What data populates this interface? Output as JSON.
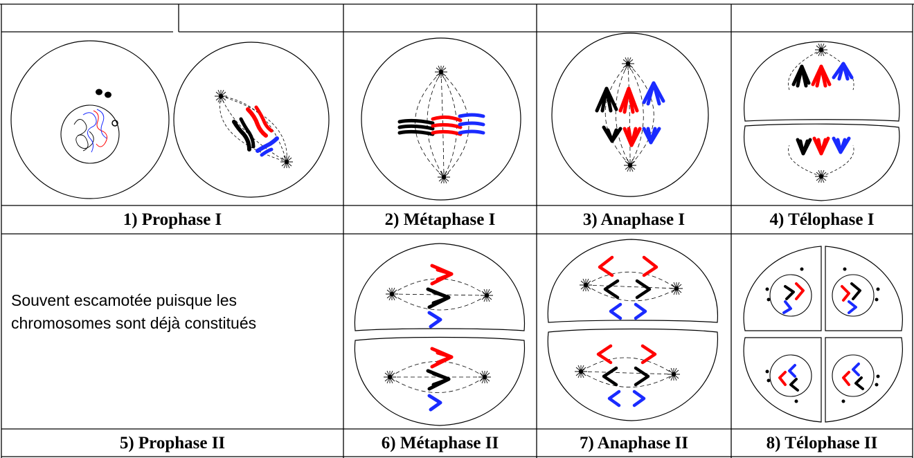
{
  "table": {
    "captions": {
      "c1": "1) Prophase I",
      "c2": "2) Métaphase I",
      "c3": "3) Anaphase I",
      "c4": "4) Télophase I",
      "c5": "5) Prophase II",
      "c6": "6) Métaphase II",
      "c7": "7) Anaphase II",
      "c8": "8) Télophase II"
    },
    "note": "Souvent escamotée puisque les chromosomes sont déjà constitués"
  },
  "colors": {
    "chromosome_black": "#000000",
    "chromosome_red": "#ff0000",
    "chromosome_blue": "#1a2bff",
    "line": "#000000"
  },
  "icons": [
    "cell-membrane",
    "centrosome",
    "spindle-fiber",
    "chromosome"
  ]
}
